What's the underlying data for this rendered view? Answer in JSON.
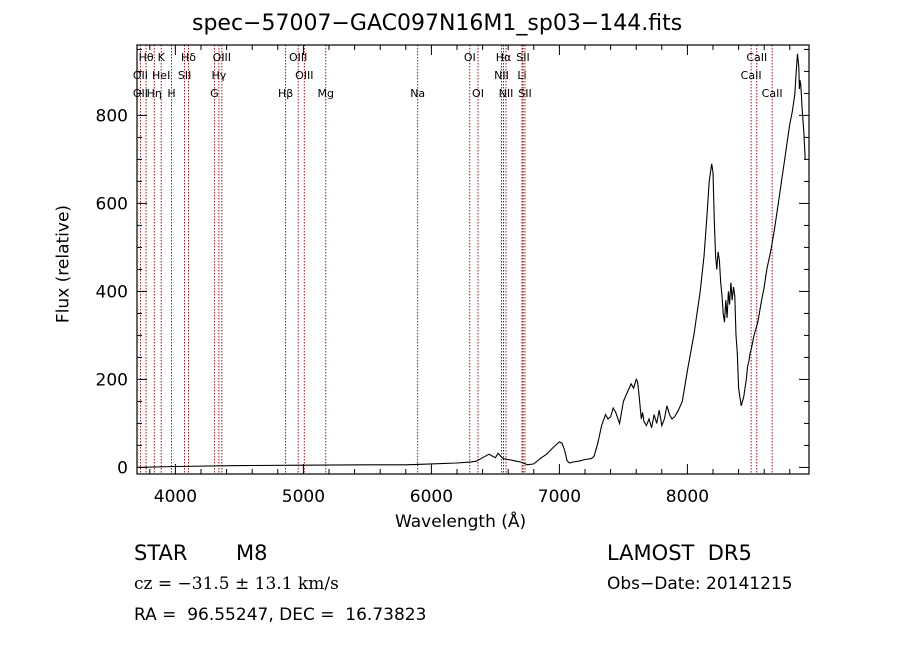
{
  "chart_data": {
    "type": "line",
    "title": "spec−57007−GAC097N16M1_sp03−144.fits",
    "xlabel": "Wavelength (Å)",
    "ylabel": "Flux (relative)",
    "xlim": [
      3700,
      8950
    ],
    "ylim": [
      -15,
      960
    ],
    "xticks": [
      4000,
      5000,
      6000,
      7000,
      8000
    ],
    "yticks": [
      0,
      200,
      400,
      600,
      800
    ],
    "series": [
      {
        "x": [
          3700,
          4000,
          4500,
          5000,
          5500,
          5800,
          6000,
          6200,
          6300,
          6350,
          6400,
          6450,
          6480,
          6500,
          6520,
          6560,
          6600,
          6650,
          6700,
          6750,
          6800,
          6850,
          6900,
          6950,
          7000,
          7020,
          7040,
          7060,
          7080,
          7100,
          7150,
          7200,
          7250,
          7270,
          7300,
          7330,
          7360,
          7380,
          7400,
          7420,
          7440,
          7470,
          7500,
          7530,
          7560,
          7580,
          7600,
          7610,
          7620,
          7640,
          7650,
          7660,
          7680,
          7700,
          7720,
          7740,
          7760,
          7780,
          7800,
          7820,
          7840,
          7860,
          7880,
          7900,
          7930,
          7960,
          8000,
          8050,
          8100,
          8130,
          8150,
          8170,
          8190,
          8200,
          8210,
          8220,
          8230,
          8240,
          8250,
          8260,
          8270,
          8280,
          8290,
          8300,
          8310,
          8320,
          8330,
          8340,
          8350,
          8360,
          8370,
          8380,
          8390,
          8400,
          8420,
          8440,
          8460,
          8470,
          8480,
          8490,
          8500,
          8520,
          8550,
          8580,
          8600,
          8620,
          8650,
          8680,
          8700,
          8720,
          8740,
          8760,
          8780,
          8800,
          8820,
          8840,
          8850,
          8860,
          8870,
          8875,
          8880,
          8885,
          8890,
          8895,
          8900,
          8910,
          8920
        ],
        "y": [
          0,
          2,
          4,
          5,
          6,
          6,
          8,
          10,
          12,
          14,
          22,
          30,
          25,
          22,
          32,
          20,
          18,
          15,
          12,
          6,
          8,
          20,
          30,
          45,
          58,
          55,
          40,
          15,
          10,
          12,
          14,
          18,
          20,
          25,
          55,
          95,
          120,
          110,
          115,
          135,
          125,
          100,
          150,
          170,
          190,
          180,
          200,
          195,
          170,
          110,
          125,
          105,
          95,
          110,
          90,
          120,
          100,
          130,
          95,
          110,
          140,
          120,
          110,
          115,
          130,
          150,
          220,
          300,
          400,
          480,
          560,
          650,
          690,
          670,
          560,
          480,
          450,
          490,
          470,
          420,
          390,
          350,
          330,
          380,
          340,
          400,
          370,
          420,
          380,
          410,
          390,
          300,
          260,
          180,
          140,
          160,
          200,
          230,
          240,
          260,
          270,
          300,
          330,
          380,
          410,
          450,
          490,
          540,
          580,
          620,
          660,
          700,
          740,
          780,
          810,
          850,
          900,
          940,
          910,
          860,
          880,
          870,
          850,
          820,
          800,
          760,
          700
        ]
      }
    ],
    "lines": {
      "top": [
        {
          "x": 3771,
          "label": "Hθ"
        },
        {
          "x": 3889,
          "label": "K"
        },
        {
          "x": 4102,
          "label": "Hδ"
        },
        {
          "x": 4363,
          "label": "OIII"
        },
        {
          "x": 4959,
          "label": "OIII"
        },
        {
          "x": 6300,
          "label": "OI"
        },
        {
          "x": 6563,
          "label": "Hα"
        },
        {
          "x": 6716,
          "label": "SII"
        },
        {
          "x": 8542,
          "label": "CaII"
        }
      ],
      "middle": [
        {
          "x": 3727,
          "label": "OII"
        },
        {
          "x": 3889,
          "label": "HeI"
        },
        {
          "x": 4072,
          "label": "SII"
        },
        {
          "x": 4340,
          "label": "Hγ"
        },
        {
          "x": 5007,
          "label": "OIII"
        },
        {
          "x": 6548,
          "label": "NII"
        },
        {
          "x": 6708,
          "label": "Li"
        },
        {
          "x": 8498,
          "label": "CaII"
        }
      ],
      "bottom": [
        {
          "x": 3727,
          "label": "OII"
        },
        {
          "x": 3835,
          "label": "Hη"
        },
        {
          "x": 3970,
          "label": "H"
        },
        {
          "x": 4305,
          "label": "G"
        },
        {
          "x": 4861,
          "label": "Hβ"
        },
        {
          "x": 5175,
          "label": "Mg"
        },
        {
          "x": 5893,
          "label": "Na"
        },
        {
          "x": 6364,
          "label": "OI"
        },
        {
          "x": 6583,
          "label": "NII"
        },
        {
          "x": 6731,
          "label": "SII"
        },
        {
          "x": 8662,
          "label": "CaII"
        }
      ]
    },
    "line_color": "#8b0000",
    "spectrum_color": "#000000",
    "grid": false,
    "legend": "none"
  },
  "info": {
    "object_class": "STAR",
    "subclass": "M8",
    "survey": "LAMOST  DR5",
    "cz": "cz = −31.5 ± 13.1 km/s",
    "obs_date": "Obs−Date: 20141215",
    "radec": "RA =  96.55247, DEC =  16.73823"
  }
}
